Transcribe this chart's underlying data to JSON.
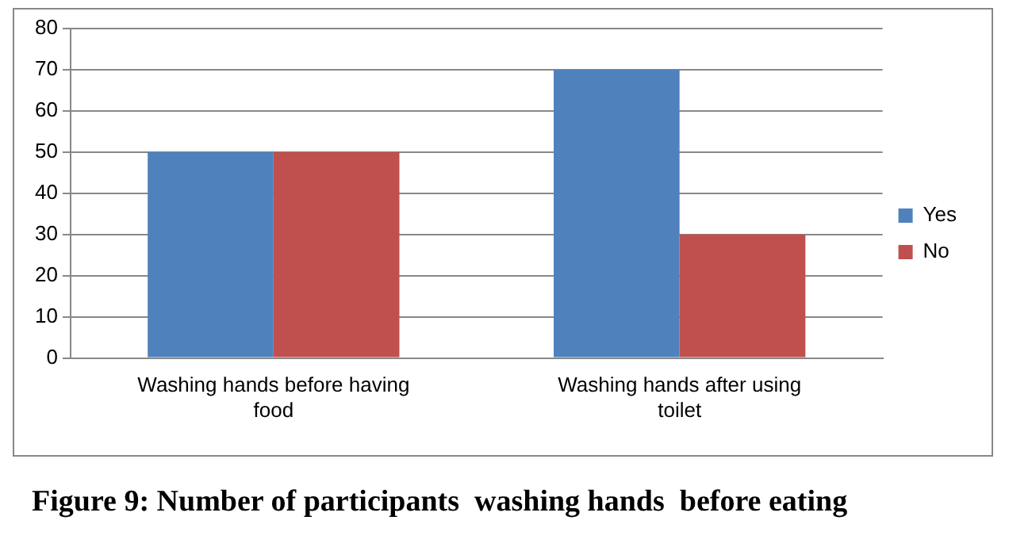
{
  "chart_data": {
    "type": "bar",
    "categories": [
      "Washing hands before having food",
      "Washing hands after using toilet"
    ],
    "series": [
      {
        "name": "Yes",
        "color": "#4f81bd",
        "values": [
          50,
          70
        ]
      },
      {
        "name": "No",
        "color": "#c0504d",
        "values": [
          50,
          30
        ]
      }
    ],
    "ylim": [
      0,
      80
    ],
    "yticks": [
      0,
      10,
      20,
      30,
      40,
      50,
      60,
      70,
      80
    ],
    "grid": "y",
    "legend": "right",
    "annotations": [
      "Figure 9: Number of participants  washing hands  before eating"
    ]
  }
}
